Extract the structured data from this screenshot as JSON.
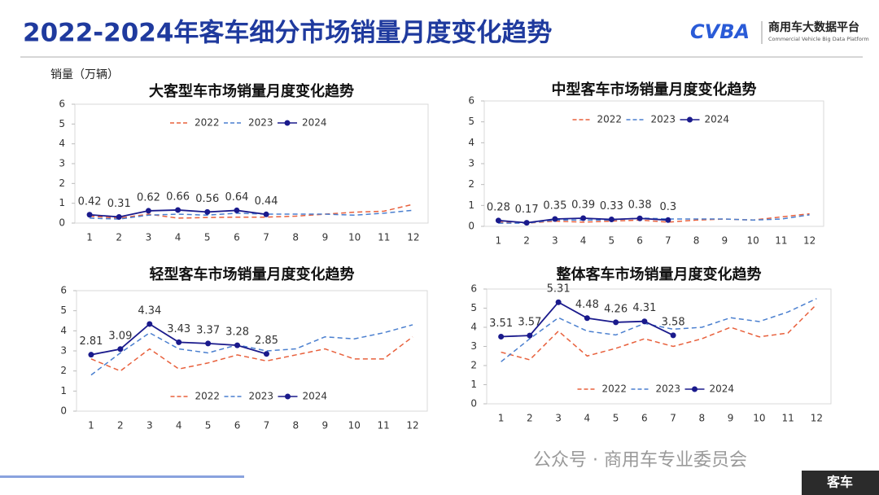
{
  "header": {
    "title": "2022-2024年客车细分市场销量月度变化趋势",
    "logo": "CVBA",
    "platform": "商用车大数据平台",
    "platform_en": "Commercial Vehicle Big Data Platform"
  },
  "footer": {
    "account": "公众号 · 商用车专业委员会",
    "tab": "客车"
  },
  "chart_data": [
    {
      "type": "line",
      "title": "大客型车市场销量月度变化趋势",
      "ylabel": "销量（万辆）",
      "categories": [
        1,
        2,
        3,
        4,
        5,
        6,
        7,
        8,
        9,
        10,
        11,
        12
      ],
      "ylim": [
        0,
        6
      ],
      "yticks": [
        0,
        1,
        2,
        3,
        4,
        5,
        6
      ],
      "grid": false,
      "legend": "top",
      "series": [
        {
          "name": "2022",
          "color": "#e8603c",
          "dashed": true,
          "values": [
            0.35,
            0.25,
            0.45,
            0.25,
            0.28,
            0.3,
            0.3,
            0.35,
            0.45,
            0.55,
            0.6,
            0.95
          ]
        },
        {
          "name": "2023",
          "color": "#4a7fcf",
          "dashed": true,
          "values": [
            0.25,
            0.2,
            0.4,
            0.45,
            0.4,
            0.5,
            0.45,
            0.45,
            0.45,
            0.4,
            0.5,
            0.65
          ]
        },
        {
          "name": "2024",
          "color": "#1a1a8c",
          "marker": true,
          "data_labels": true,
          "values": [
            0.42,
            0.31,
            0.62,
            0.66,
            0.56,
            0.64,
            0.44,
            null,
            null,
            null,
            null,
            null
          ]
        }
      ]
    },
    {
      "type": "line",
      "title": "中型客车市场销量月度变化趋势",
      "categories": [
        1,
        2,
        3,
        4,
        5,
        6,
        7,
        8,
        9,
        10,
        11,
        12
      ],
      "ylim": [
        0,
        6
      ],
      "yticks": [
        0,
        1,
        2,
        3,
        4,
        5,
        6
      ],
      "grid": false,
      "legend": "top",
      "series": [
        {
          "name": "2022",
          "color": "#e8603c",
          "dashed": true,
          "values": [
            0.2,
            0.15,
            0.25,
            0.2,
            0.25,
            0.3,
            0.2,
            0.3,
            0.35,
            0.3,
            0.45,
            0.6
          ]
        },
        {
          "name": "2023",
          "color": "#4a7fcf",
          "dashed": true,
          "values": [
            0.15,
            0.15,
            0.3,
            0.3,
            0.3,
            0.4,
            0.35,
            0.35,
            0.35,
            0.3,
            0.35,
            0.55
          ]
        },
        {
          "name": "2024",
          "color": "#1a1a8c",
          "marker": true,
          "data_labels": true,
          "values": [
            0.28,
            0.17,
            0.35,
            0.39,
            0.33,
            0.38,
            0.3,
            null,
            null,
            null,
            null,
            null
          ]
        }
      ]
    },
    {
      "type": "line",
      "title": "轻型客车市场销量月度变化趋势",
      "categories": [
        1,
        2,
        3,
        4,
        5,
        6,
        7,
        8,
        9,
        10,
        11,
        12
      ],
      "ylim": [
        0,
        6
      ],
      "yticks": [
        0,
        1,
        2,
        3,
        4,
        5,
        6
      ],
      "grid": false,
      "legend": "bottom",
      "series": [
        {
          "name": "2022",
          "color": "#e8603c",
          "dashed": true,
          "values": [
            2.6,
            2.0,
            3.1,
            2.1,
            2.4,
            2.8,
            2.5,
            2.8,
            3.1,
            2.6,
            2.6,
            3.7
          ]
        },
        {
          "name": "2023",
          "color": "#4a7fcf",
          "dashed": true,
          "values": [
            1.8,
            2.9,
            3.9,
            3.1,
            2.9,
            3.3,
            3.0,
            3.1,
            3.7,
            3.6,
            3.9,
            4.3
          ]
        },
        {
          "name": "2024",
          "color": "#1a1a8c",
          "marker": true,
          "data_labels": true,
          "values": [
            2.81,
            3.09,
            4.34,
            3.43,
            3.37,
            3.28,
            2.85,
            null,
            null,
            null,
            null,
            null
          ]
        }
      ]
    },
    {
      "type": "line",
      "title": "整体客车市场销量月度变化趋势",
      "categories": [
        1,
        2,
        3,
        4,
        5,
        6,
        7,
        8,
        9,
        10,
        11,
        12
      ],
      "ylim": [
        0,
        6
      ],
      "yticks": [
        0,
        1,
        2,
        3,
        4,
        5,
        6
      ],
      "grid": false,
      "legend": "bottom",
      "series": [
        {
          "name": "2022",
          "color": "#e8603c",
          "dashed": true,
          "values": [
            2.7,
            2.3,
            3.8,
            2.5,
            2.9,
            3.4,
            3.0,
            3.4,
            4.0,
            3.5,
            3.7,
            5.2
          ]
        },
        {
          "name": "2023",
          "color": "#4a7fcf",
          "dashed": true,
          "values": [
            2.2,
            3.4,
            4.5,
            3.8,
            3.6,
            4.2,
            3.9,
            4.0,
            4.5,
            4.3,
            4.8,
            5.5
          ]
        },
        {
          "name": "2024",
          "color": "#1a1a8c",
          "marker": true,
          "data_labels": true,
          "values": [
            3.51,
            3.57,
            5.31,
            4.48,
            4.26,
            4.31,
            3.58,
            null,
            null,
            null,
            null,
            null
          ]
        }
      ]
    }
  ]
}
